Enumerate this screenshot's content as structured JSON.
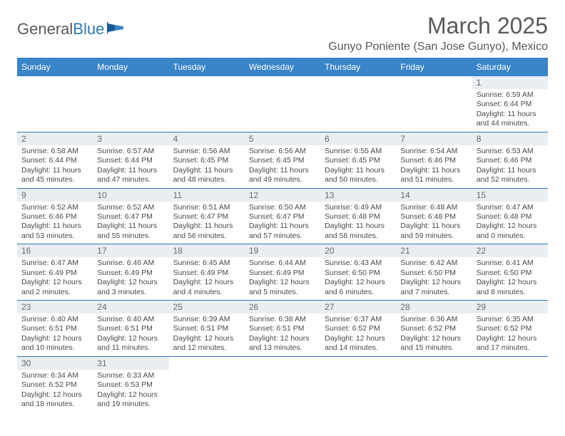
{
  "brand": {
    "general": "General",
    "blue": "Blue"
  },
  "title": "March 2025",
  "location": "Gunyo Poniente (San Jose Gunyo), Mexico",
  "colors": {
    "header_bg": "#3a85c9",
    "border": "#2e77b8",
    "daynum_bg": "#e9eef3",
    "text": "#4a4a4a",
    "title_text": "#5a5a5a",
    "logo_blue": "#2e77b8"
  },
  "typography": {
    "title_fontsize": 32,
    "location_fontsize": 16,
    "weekday_fontsize": 12,
    "daynum_fontsize": 12,
    "body_fontsize": 10.5
  },
  "weekdays": [
    "Sunday",
    "Monday",
    "Tuesday",
    "Wednesday",
    "Thursday",
    "Friday",
    "Saturday"
  ],
  "weeks": [
    [
      null,
      null,
      null,
      null,
      null,
      null,
      {
        "n": "1",
        "sunrise": "Sunrise: 6:59 AM",
        "sunset": "Sunset: 6:44 PM",
        "daylight": "Daylight: 11 hours and 44 minutes."
      }
    ],
    [
      {
        "n": "2",
        "sunrise": "Sunrise: 6:58 AM",
        "sunset": "Sunset: 6:44 PM",
        "daylight": "Daylight: 11 hours and 45 minutes."
      },
      {
        "n": "3",
        "sunrise": "Sunrise: 6:57 AM",
        "sunset": "Sunset: 6:44 PM",
        "daylight": "Daylight: 11 hours and 47 minutes."
      },
      {
        "n": "4",
        "sunrise": "Sunrise: 6:56 AM",
        "sunset": "Sunset: 6:45 PM",
        "daylight": "Daylight: 11 hours and 48 minutes."
      },
      {
        "n": "5",
        "sunrise": "Sunrise: 6:56 AM",
        "sunset": "Sunset: 6:45 PM",
        "daylight": "Daylight: 11 hours and 49 minutes."
      },
      {
        "n": "6",
        "sunrise": "Sunrise: 6:55 AM",
        "sunset": "Sunset: 6:45 PM",
        "daylight": "Daylight: 11 hours and 50 minutes."
      },
      {
        "n": "7",
        "sunrise": "Sunrise: 6:54 AM",
        "sunset": "Sunset: 6:46 PM",
        "daylight": "Daylight: 11 hours and 51 minutes."
      },
      {
        "n": "8",
        "sunrise": "Sunrise: 6:53 AM",
        "sunset": "Sunset: 6:46 PM",
        "daylight": "Daylight: 11 hours and 52 minutes."
      }
    ],
    [
      {
        "n": "9",
        "sunrise": "Sunrise: 6:52 AM",
        "sunset": "Sunset: 6:46 PM",
        "daylight": "Daylight: 11 hours and 53 minutes."
      },
      {
        "n": "10",
        "sunrise": "Sunrise: 6:52 AM",
        "sunset": "Sunset: 6:47 PM",
        "daylight": "Daylight: 11 hours and 55 minutes."
      },
      {
        "n": "11",
        "sunrise": "Sunrise: 6:51 AM",
        "sunset": "Sunset: 6:47 PM",
        "daylight": "Daylight: 11 hours and 56 minutes."
      },
      {
        "n": "12",
        "sunrise": "Sunrise: 6:50 AM",
        "sunset": "Sunset: 6:47 PM",
        "daylight": "Daylight: 11 hours and 57 minutes."
      },
      {
        "n": "13",
        "sunrise": "Sunrise: 6:49 AM",
        "sunset": "Sunset: 6:48 PM",
        "daylight": "Daylight: 11 hours and 58 minutes."
      },
      {
        "n": "14",
        "sunrise": "Sunrise: 6:48 AM",
        "sunset": "Sunset: 6:48 PM",
        "daylight": "Daylight: 11 hours and 59 minutes."
      },
      {
        "n": "15",
        "sunrise": "Sunrise: 6:47 AM",
        "sunset": "Sunset: 6:48 PM",
        "daylight": "Daylight: 12 hours and 0 minutes."
      }
    ],
    [
      {
        "n": "16",
        "sunrise": "Sunrise: 6:47 AM",
        "sunset": "Sunset: 6:49 PM",
        "daylight": "Daylight: 12 hours and 2 minutes."
      },
      {
        "n": "17",
        "sunrise": "Sunrise: 6:46 AM",
        "sunset": "Sunset: 6:49 PM",
        "daylight": "Daylight: 12 hours and 3 minutes."
      },
      {
        "n": "18",
        "sunrise": "Sunrise: 6:45 AM",
        "sunset": "Sunset: 6:49 PM",
        "daylight": "Daylight: 12 hours and 4 minutes."
      },
      {
        "n": "19",
        "sunrise": "Sunrise: 6:44 AM",
        "sunset": "Sunset: 6:49 PM",
        "daylight": "Daylight: 12 hours and 5 minutes."
      },
      {
        "n": "20",
        "sunrise": "Sunrise: 6:43 AM",
        "sunset": "Sunset: 6:50 PM",
        "daylight": "Daylight: 12 hours and 6 minutes."
      },
      {
        "n": "21",
        "sunrise": "Sunrise: 6:42 AM",
        "sunset": "Sunset: 6:50 PM",
        "daylight": "Daylight: 12 hours and 7 minutes."
      },
      {
        "n": "22",
        "sunrise": "Sunrise: 6:41 AM",
        "sunset": "Sunset: 6:50 PM",
        "daylight": "Daylight: 12 hours and 8 minutes."
      }
    ],
    [
      {
        "n": "23",
        "sunrise": "Sunrise: 6:40 AM",
        "sunset": "Sunset: 6:51 PM",
        "daylight": "Daylight: 12 hours and 10 minutes."
      },
      {
        "n": "24",
        "sunrise": "Sunrise: 6:40 AM",
        "sunset": "Sunset: 6:51 PM",
        "daylight": "Daylight: 12 hours and 11 minutes."
      },
      {
        "n": "25",
        "sunrise": "Sunrise: 6:39 AM",
        "sunset": "Sunset: 6:51 PM",
        "daylight": "Daylight: 12 hours and 12 minutes."
      },
      {
        "n": "26",
        "sunrise": "Sunrise: 6:38 AM",
        "sunset": "Sunset: 6:51 PM",
        "daylight": "Daylight: 12 hours and 13 minutes."
      },
      {
        "n": "27",
        "sunrise": "Sunrise: 6:37 AM",
        "sunset": "Sunset: 6:52 PM",
        "daylight": "Daylight: 12 hours and 14 minutes."
      },
      {
        "n": "28",
        "sunrise": "Sunrise: 6:36 AM",
        "sunset": "Sunset: 6:52 PM",
        "daylight": "Daylight: 12 hours and 15 minutes."
      },
      {
        "n": "29",
        "sunrise": "Sunrise: 6:35 AM",
        "sunset": "Sunset: 6:52 PM",
        "daylight": "Daylight: 12 hours and 17 minutes."
      }
    ],
    [
      {
        "n": "30",
        "sunrise": "Sunrise: 6:34 AM",
        "sunset": "Sunset: 6:52 PM",
        "daylight": "Daylight: 12 hours and 18 minutes."
      },
      {
        "n": "31",
        "sunrise": "Sunrise: 6:33 AM",
        "sunset": "Sunset: 6:53 PM",
        "daylight": "Daylight: 12 hours and 19 minutes."
      },
      null,
      null,
      null,
      null,
      null
    ]
  ]
}
